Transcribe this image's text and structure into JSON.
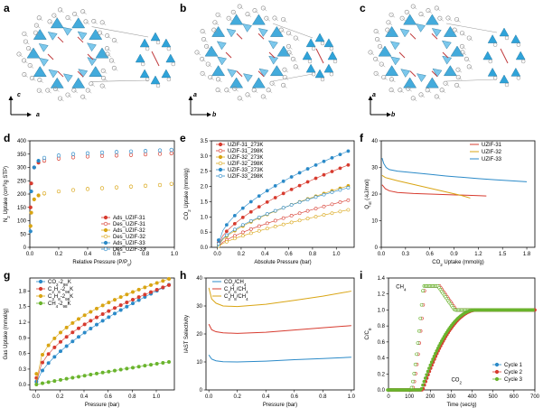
{
  "panel_letters": {
    "a": "a",
    "b": "b",
    "c": "c",
    "d": "d",
    "e": "e",
    "f": "f",
    "g": "g",
    "h": "h",
    "i": "i"
  },
  "structure_axes": {
    "a": {
      "vertical": "c",
      "horizontal": "a"
    },
    "b": {
      "vertical": "a",
      "horizontal": "b"
    },
    "c": {
      "vertical": "a",
      "horizontal": "b"
    }
  },
  "colors": {
    "red": "#d73b2f",
    "orange": "#d9a514",
    "blue": "#2b8ac8",
    "green": "#6ab42d",
    "polyhedra": "#2fa3d9",
    "bond": "#c0393b"
  },
  "chart_data": [
    {
      "id": "d",
      "type": "scatter",
      "ylabel": "N2 Uptake (cm3/g STP)",
      "xlabel": "Relative Pressure (P/P0)",
      "xlim": [
        0,
        1
      ],
      "ylim": [
        0,
        400
      ],
      "xticks": [
        "0.0",
        "0.2",
        "0.4",
        "0.6",
        "0.8",
        "1.0"
      ],
      "yticks": [
        "0",
        "50",
        "100",
        "150",
        "200",
        "250",
        "300",
        "350",
        "400"
      ],
      "series": [
        {
          "name": "Ads_UZIF-31",
          "color": "#d73b2f",
          "filled": true,
          "x": [
            0.005,
            0.01,
            0.03,
            0.06,
            0.1,
            0.2,
            0.3,
            0.4,
            0.5,
            0.6,
            0.7,
            0.8,
            0.9,
            0.98
          ],
          "y": [
            150,
            240,
            300,
            318,
            325,
            333,
            338,
            341,
            343,
            345,
            347,
            349,
            351,
            353
          ]
        },
        {
          "name": "Des_UZIF-31",
          "color": "#d73b2f",
          "filled": false,
          "x": [
            0.98,
            0.9,
            0.8,
            0.7,
            0.6,
            0.5,
            0.4,
            0.3,
            0.2,
            0.1
          ],
          "y": [
            353,
            351,
            349,
            347,
            345,
            343,
            341,
            338,
            333,
            326
          ]
        },
        {
          "name": "Ads_UZIF-32",
          "color": "#d9a514",
          "filled": true,
          "x": [
            0.005,
            0.01,
            0.03,
            0.06,
            0.1,
            0.2,
            0.3,
            0.4,
            0.5,
            0.6,
            0.7,
            0.8,
            0.9,
            0.98
          ],
          "y": [
            80,
            130,
            180,
            195,
            202,
            210,
            215,
            219,
            222,
            225,
            228,
            231,
            234,
            238
          ]
        },
        {
          "name": "Des_UZIF-32",
          "color": "#d9a514",
          "filled": false,
          "x": [
            0.98,
            0.9,
            0.8,
            0.7,
            0.6,
            0.5,
            0.4,
            0.3,
            0.2,
            0.1
          ],
          "y": [
            238,
            234,
            231,
            228,
            225,
            222,
            219,
            215,
            210,
            203
          ]
        },
        {
          "name": "Ads_UZIF-33",
          "color": "#2b8ac8",
          "filled": true,
          "x": [
            0.005,
            0.01,
            0.03,
            0.06,
            0.1,
            0.2,
            0.3,
            0.4,
            0.5,
            0.6,
            0.7,
            0.8,
            0.9,
            0.98
          ],
          "y": [
            60,
            210,
            300,
            325,
            335,
            345,
            350,
            353,
            356,
            358,
            360,
            362,
            364,
            366
          ]
        },
        {
          "name": "Des_UZIF-33",
          "color": "#2b8ac8",
          "filled": false,
          "x": [
            0.98,
            0.9,
            0.8,
            0.7,
            0.6,
            0.5,
            0.4,
            0.3,
            0.2,
            0.1
          ],
          "y": [
            366,
            364,
            362,
            360,
            358,
            356,
            353,
            350,
            345,
            336
          ]
        }
      ]
    },
    {
      "id": "e",
      "type": "scatter",
      "ylabel": "CO2 Uptake (mmol/g)",
      "xlabel": "Absolute Pressure (bar)",
      "xlim": [
        -0.05,
        1.15
      ],
      "ylim": [
        0,
        3.5
      ],
      "xticks": [
        "0.0",
        "0.2",
        "0.4",
        "0.6",
        "0.8",
        "1.0"
      ],
      "yticks": [
        "0.0",
        "0.5",
        "1.0",
        "1.5",
        "2.0",
        "2.5",
        "3.0",
        "3.5"
      ],
      "series": [
        {
          "name": "UZIF-31_273K",
          "color": "#d73b2f",
          "filled": true,
          "k": 2.55,
          "p": 0.62
        },
        {
          "name": "UZIF-31_298K",
          "color": "#d73b2f",
          "filled": false,
          "k": 1.45,
          "p": 0.7
        },
        {
          "name": "UZIF-32_273K",
          "color": "#d9a514",
          "filled": true,
          "k": 1.9,
          "p": 0.65
        },
        {
          "name": "UZIF-32_298K",
          "color": "#d9a514",
          "filled": false,
          "k": 1.15,
          "p": 0.72
        },
        {
          "name": "UZIF-33_273K",
          "color": "#2b8ac8",
          "filled": true,
          "k": 3.0,
          "p": 0.55
        },
        {
          "name": "UZIF-33_298K",
          "color": "#2b8ac8",
          "filled": false,
          "k": 1.85,
          "p": 0.6
        }
      ]
    },
    {
      "id": "f",
      "type": "line",
      "ylabel": "Qst (-kJ/mol)",
      "xlabel": "CO2 Uptake (mmol/g)",
      "xlim": [
        0,
        1.9
      ],
      "ylim": [
        0,
        40
      ],
      "xticks": [
        "0.0",
        "0.3",
        "0.6",
        "0.9",
        "1.2",
        "1.5",
        "1.8"
      ],
      "yticks": [
        "0",
        "10",
        "20",
        "30",
        "40"
      ],
      "series": [
        {
          "name": "UZIF-31",
          "color": "#d73b2f",
          "x": [
            0.01,
            0.05,
            0.1,
            0.2,
            0.4,
            0.6,
            0.8,
            1.0,
            1.2,
            1.3
          ],
          "y": [
            23.5,
            22.0,
            21.2,
            20.6,
            20.2,
            20.0,
            19.8,
            19.6,
            19.4,
            19.3
          ]
        },
        {
          "name": "UZIF-32",
          "color": "#d9a514",
          "x": [
            0.01,
            0.05,
            0.1,
            0.2,
            0.4,
            0.6,
            0.8,
            1.0,
            1.1
          ],
          "y": [
            27.0,
            26.2,
            25.8,
            25.0,
            23.6,
            22.2,
            20.8,
            19.4,
            18.5
          ]
        },
        {
          "name": "UZIF-33",
          "color": "#2b8ac8",
          "x": [
            0.01,
            0.03,
            0.06,
            0.1,
            0.2,
            0.4,
            0.6,
            0.8,
            1.0,
            1.2,
            1.4,
            1.6,
            1.8
          ],
          "y": [
            33.5,
            31.5,
            30.0,
            29.2,
            28.6,
            28.0,
            27.4,
            26.8,
            26.3,
            25.8,
            25.4,
            25.0,
            24.6
          ]
        }
      ]
    },
    {
      "id": "g",
      "type": "scatter",
      "ylabel": "Gas Uptake (mmol/g)",
      "xlabel": "Pressure (bar)",
      "xlim": [
        -0.05,
        1.15
      ],
      "ylim": [
        -0.1,
        2.05
      ],
      "xticks": [
        "0.0",
        "0.2",
        "0.4",
        "0.6",
        "0.8",
        "1.0"
      ],
      "yticks": [
        "0.0",
        "0.3",
        "0.6",
        "0.9",
        "1.2",
        "1.5",
        "1.8"
      ],
      "series": [
        {
          "name": "CO2-298K",
          "color": "#2b8ac8",
          "k": 1.8,
          "p": 0.65
        },
        {
          "name": "C2H6-298K",
          "color": "#d73b2f",
          "k": 1.82,
          "p": 0.5
        },
        {
          "name": "C3H8-298K",
          "color": "#d9a514",
          "k": 1.95,
          "p": 0.42
        },
        {
          "name": "CH4-298K",
          "color": "#6ab42d",
          "k": 0.4,
          "p": 0.92
        }
      ]
    },
    {
      "id": "h",
      "type": "line",
      "ylabel": "IAST Selectivity",
      "xlabel": "Pressure (bar)",
      "xlim": [
        -0.02,
        1.02
      ],
      "ylim": [
        0,
        40
      ],
      "xticks": [
        "0.0",
        "0.2",
        "0.4",
        "0.6",
        "0.8",
        "1.0"
      ],
      "yticks": [
        "0",
        "10",
        "20",
        "30",
        "40"
      ],
      "series": [
        {
          "name": "CO2/CH4",
          "color": "#2b8ac8",
          "x": [
            0.0,
            0.02,
            0.05,
            0.1,
            0.2,
            0.4,
            0.6,
            0.8,
            1.0
          ],
          "y": [
            12.5,
            11.0,
            10.4,
            10.1,
            10.0,
            10.3,
            10.8,
            11.2,
            11.7
          ]
        },
        {
          "name": "C2H6/CH4",
          "color": "#d73b2f",
          "x": [
            0.0,
            0.02,
            0.05,
            0.1,
            0.2,
            0.4,
            0.6,
            0.8,
            1.0
          ],
          "y": [
            23.5,
            21.5,
            20.8,
            20.4,
            20.2,
            20.6,
            21.4,
            22.2,
            23.0
          ]
        },
        {
          "name": "C3H8/CH4",
          "color": "#d9a514",
          "x": [
            0.0,
            0.02,
            0.05,
            0.1,
            0.2,
            0.4,
            0.6,
            0.8,
            1.0
          ],
          "y": [
            36.5,
            32.5,
            31.0,
            30.0,
            29.8,
            30.6,
            32.0,
            33.5,
            35.3
          ]
        }
      ]
    },
    {
      "id": "i",
      "type": "line",
      "ylabel": "C/C0",
      "xlabel": "Time (sec/g)",
      "xlim": [
        0,
        700
      ],
      "ylim": [
        0,
        1.4
      ],
      "xticks": [
        "0",
        "100",
        "200",
        "300",
        "400",
        "500",
        "600",
        "700"
      ],
      "yticks": [
        "0.0",
        "0.2",
        "0.4",
        "0.6",
        "0.8",
        "1.0",
        "1.2",
        "1.4"
      ],
      "annotations": {
        "ch4": "CH4",
        "co2": "CO2"
      },
      "series": [
        {
          "name": "Cycle 1",
          "color": "#2b8ac8"
        },
        {
          "name": "Cycle 2",
          "color": "#d73b2f"
        },
        {
          "name": "Cycle 3",
          "color": "#6ab42d"
        }
      ]
    }
  ]
}
